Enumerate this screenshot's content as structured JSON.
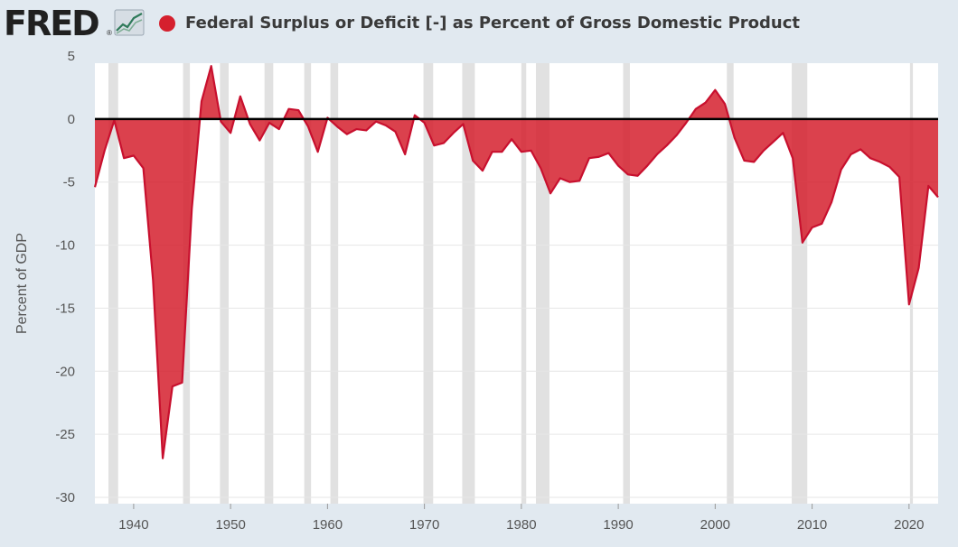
{
  "header": {
    "logo_text": "FRED",
    "logo_mark": "®",
    "logo_icon": "line-chart-icon",
    "series_color": "#d5202e",
    "title": "Federal Surplus or Deficit [-] as Percent of Gross Domestic Product"
  },
  "chart_data": {
    "type": "area",
    "title": "Federal Surplus or Deficit [-] as Percent of Gross Domestic Product",
    "xlabel": "",
    "ylabel": "Percent of GDP",
    "xlim": [
      1936,
      2023
    ],
    "ylim": [
      -30,
      5
    ],
    "yticks": [
      5,
      0,
      -5,
      -10,
      -15,
      -20,
      -25,
      -30
    ],
    "xticks": [
      1940,
      1950,
      1960,
      1970,
      1980,
      1990,
      2000,
      2010,
      2020
    ],
    "grid": true,
    "zero_line": 0,
    "fill_color": "#d5202e",
    "recessions": [
      [
        1937.4,
        1938.4
      ],
      [
        1945.1,
        1945.8
      ],
      [
        1948.9,
        1949.8
      ],
      [
        1953.5,
        1954.4
      ],
      [
        1957.6,
        1958.3
      ],
      [
        1960.3,
        1961.1
      ],
      [
        1969.9,
        1970.9
      ],
      [
        1973.9,
        1975.2
      ],
      [
        1980.0,
        1980.5
      ],
      [
        1981.5,
        1982.9
      ],
      [
        1990.5,
        1991.2
      ],
      [
        2001.2,
        2001.9
      ],
      [
        2007.9,
        2009.5
      ],
      [
        2020.1,
        2020.4
      ]
    ],
    "x": [
      1936,
      1937,
      1938,
      1939,
      1940,
      1941,
      1942,
      1943,
      1944,
      1945,
      1946,
      1947,
      1948,
      1949,
      1950,
      1951,
      1952,
      1953,
      1954,
      1955,
      1956,
      1957,
      1958,
      1959,
      1960,
      1961,
      1962,
      1963,
      1964,
      1965,
      1966,
      1967,
      1968,
      1969,
      1970,
      1971,
      1972,
      1973,
      1974,
      1975,
      1976,
      1977,
      1978,
      1979,
      1980,
      1981,
      1982,
      1983,
      1984,
      1985,
      1986,
      1987,
      1988,
      1989,
      1990,
      1991,
      1992,
      1993,
      1994,
      1995,
      1996,
      1997,
      1998,
      1999,
      2000,
      2001,
      2002,
      2003,
      2004,
      2005,
      2006,
      2007,
      2008,
      2009,
      2010,
      2011,
      2012,
      2013,
      2014,
      2015,
      2016,
      2017,
      2018,
      2019,
      2020,
      2021,
      2022,
      2023
    ],
    "values": [
      -5.4,
      -2.5,
      -0.1,
      -3.1,
      -2.9,
      -3.9,
      -12.8,
      -26.9,
      -21.2,
      -20.9,
      -7.1,
      1.4,
      4.2,
      -0.2,
      -1.1,
      1.8,
      -0.4,
      -1.7,
      -0.3,
      -0.8,
      0.8,
      0.7,
      -0.6,
      -2.6,
      0.1,
      -0.6,
      -1.2,
      -0.8,
      -0.9,
      -0.2,
      -0.5,
      -1.0,
      -2.8,
      0.3,
      -0.3,
      -2.1,
      -1.9,
      -1.1,
      -0.4,
      -3.3,
      -4.1,
      -2.6,
      -2.6,
      -1.6,
      -2.6,
      -2.5,
      -3.9,
      -5.9,
      -4.7,
      -5.0,
      -4.9,
      -3.1,
      -3.0,
      -2.7,
      -3.7,
      -4.4,
      -4.5,
      -3.7,
      -2.8,
      -2.1,
      -1.3,
      -0.3,
      0.8,
      1.3,
      2.3,
      1.2,
      -1.5,
      -3.3,
      -3.4,
      -2.5,
      -1.8,
      -1.1,
      -3.1,
      -9.8,
      -8.6,
      -8.3,
      -6.6,
      -4.0,
      -2.8,
      -2.4,
      -3.1,
      -3.4,
      -3.8,
      -4.6,
      -14.7,
      -11.8,
      -5.3,
      -6.2
    ]
  }
}
